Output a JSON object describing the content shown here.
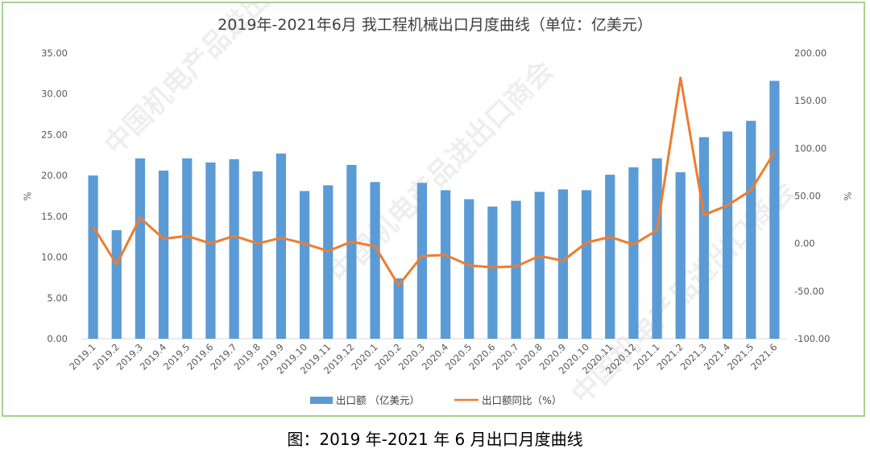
{
  "caption": "图：2019 年-2021 年 6 月出口月度曲线",
  "colors": {
    "bar": "#5b9bd5",
    "line": "#ed7d31",
    "border": "#a9d18e",
    "grid": "#d9d9d9"
  },
  "chart_data": {
    "type": "bar+line",
    "title": "2019年-2021年6月 我工程机械出口月度曲线（单位：亿美元）",
    "ylabel_left": "%",
    "ylabel_right": "%",
    "ylim_left": [
      0,
      35
    ],
    "ylim_right": [
      -100,
      200
    ],
    "yticks_left": [
      "0.00",
      "5.00",
      "10.00",
      "15.00",
      "20.00",
      "25.00",
      "30.00",
      "35.00"
    ],
    "yticks_right": [
      "-100.00",
      "-50.00",
      "0.00",
      "50.00",
      "100.00",
      "150.00",
      "200.00"
    ],
    "grid": false,
    "legend_position": "bottom",
    "categories": [
      "2019.1",
      "2019.2",
      "2019.3",
      "2019.4",
      "2019.5",
      "2019.6",
      "2019.7",
      "2019.8",
      "2019.9",
      "2019.10",
      "2019.11",
      "2019.12",
      "2020.1",
      "2020.2",
      "2020.3",
      "2020.4",
      "2020.5",
      "2020.6",
      "2020.7",
      "2020.8",
      "2020.9",
      "2020.10",
      "2020.11",
      "2020.12",
      "2021.1",
      "2021.2",
      "2021.3",
      "2021.4",
      "2021.5",
      "2021.6"
    ],
    "series": [
      {
        "name": "出口额 （亿美元）",
        "type": "bar",
        "axis": "left",
        "values": [
          20.0,
          13.3,
          22.1,
          20.6,
          22.1,
          21.6,
          22.0,
          20.5,
          22.7,
          18.1,
          18.8,
          21.3,
          19.2,
          7.4,
          19.1,
          18.2,
          17.1,
          16.2,
          16.9,
          18.0,
          18.3,
          18.2,
          20.1,
          21.0,
          22.1,
          20.4,
          24.7,
          25.4,
          26.7,
          31.6
        ]
      },
      {
        "name": "出口额同比（%）",
        "type": "line",
        "axis": "right",
        "values": [
          18,
          -22,
          27,
          5,
          8,
          0,
          8,
          0,
          6,
          0,
          -8,
          2,
          -3,
          -44,
          -13,
          -12,
          -23,
          -25,
          -24,
          -13,
          -18,
          1,
          7,
          -1,
          14,
          174,
          30,
          40,
          56,
          96
        ]
      }
    ]
  }
}
